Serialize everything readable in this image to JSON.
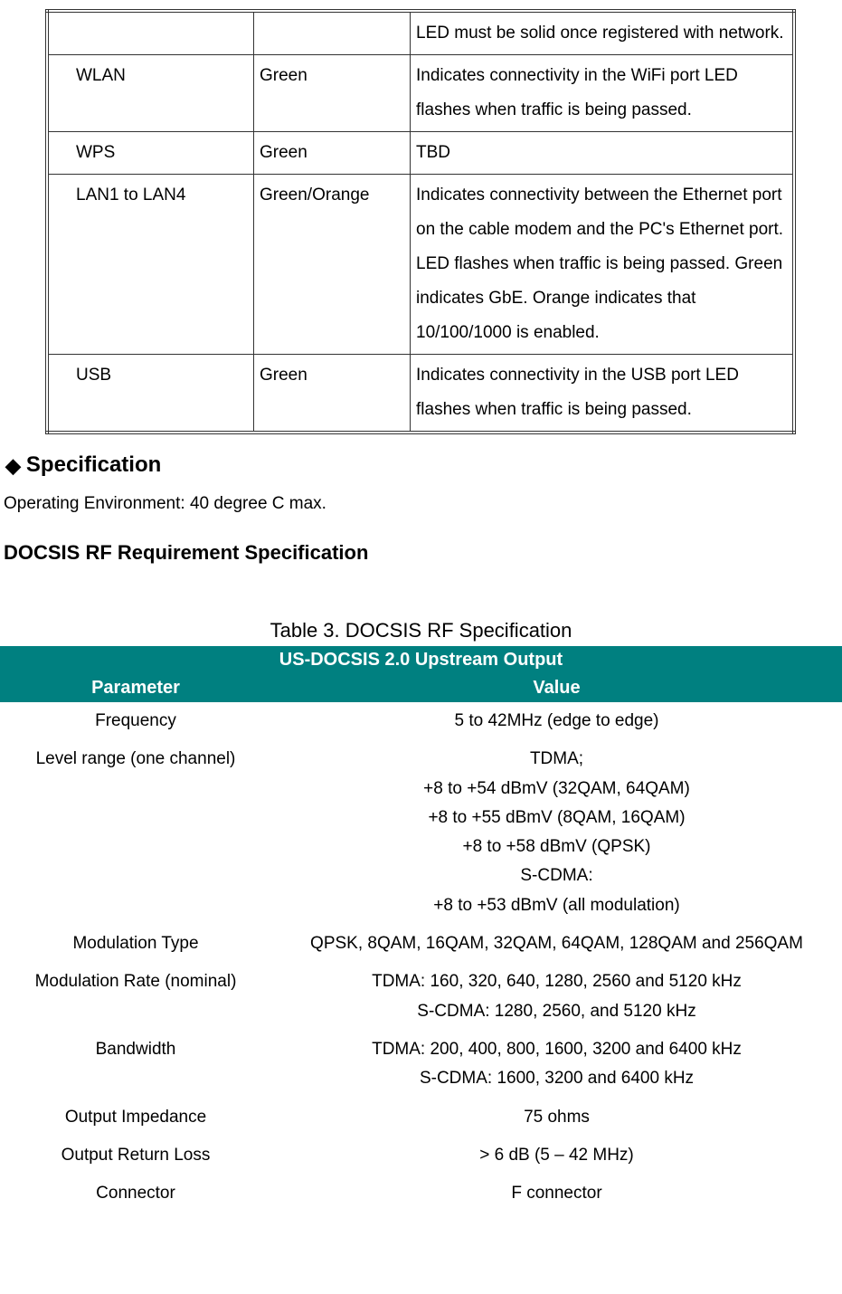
{
  "led_table": {
    "rows": [
      {
        "c1": "",
        "c2": "",
        "c3": "LED must be solid once registered with network."
      },
      {
        "c1": "WLAN",
        "c2": "Green",
        "c3": "Indicates connectivity in the WiFi port LED flashes when traffic is being passed."
      },
      {
        "c1": "WPS",
        "c2": "Green",
        "c3": "TBD"
      },
      {
        "c1": "LAN1 to LAN4",
        "c2": "Green/Orange",
        "c3": "Indicates connectivity between the Ethernet port on the cable modem and the PC's Ethernet port. LED flashes when traffic is being passed. Green indicates GbE. Orange indicates that 10/100/1000 is enabled."
      },
      {
        "c1": "USB",
        "c2": "Green",
        "c3": "Indicates connectivity in the USB port LED flashes when traffic is being passed."
      }
    ]
  },
  "section_title": "Specification",
  "operating_text": "Operating Environment: 40 degree C max.",
  "subsection_title": "DOCSIS RF Requirement Specification",
  "table_caption": "Table 3. DOCSIS RF Specification",
  "spec_table": {
    "top_header": "US-DOCSIS 2.0 Upstream Output",
    "col_param": "Parameter",
    "col_value": "Value",
    "header_bg": "#008080",
    "header_fg": "#ffffff",
    "rows": [
      {
        "param": "Frequency",
        "value": "5 to 42MHz (edge to edge)"
      },
      {
        "param": "Level range (one channel)",
        "value": "TDMA;\n+8 to +54 dBmV (32QAM, 64QAM)\n+8 to +55 dBmV (8QAM, 16QAM)\n+8 to +58 dBmV (QPSK)\nS-CDMA:\n+8 to +53 dBmV (all modulation)"
      },
      {
        "param": "Modulation Type",
        "value": "QPSK, 8QAM, 16QAM, 32QAM, 64QAM, 128QAM and 256QAM"
      },
      {
        "param": "Modulation Rate (nominal)",
        "value": "TDMA: 160, 320, 640, 1280, 2560 and 5120 kHz\nS-CDMA: 1280, 2560, and 5120 kHz"
      },
      {
        "param": "Bandwidth",
        "value": "TDMA: 200, 400, 800, 1600, 3200 and 6400 kHz\nS-CDMA: 1600, 3200 and 6400 kHz"
      },
      {
        "param": "Output Impedance",
        "value": "75 ohms"
      },
      {
        "param": "Output Return Loss",
        "value": "> 6 dB (5 – 42 MHz)"
      },
      {
        "param": "Connector",
        "value": "F connector"
      }
    ]
  }
}
